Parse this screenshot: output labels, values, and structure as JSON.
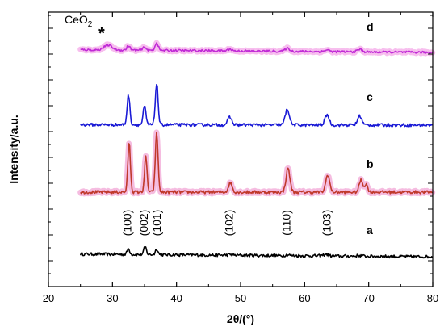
{
  "chart_data": {
    "type": "line",
    "xlabel": "2θ/(°)",
    "ylabel": "Intensity/a.u.",
    "xlim": [
      20,
      80
    ],
    "xticks": [
      20,
      30,
      40,
      50,
      60,
      70,
      80
    ],
    "grid": false,
    "legend": "none",
    "annotation": {
      "main": "CeO",
      "sub": "2",
      "marker": "*",
      "x": 29.5
    },
    "peak_labels": [
      {
        "text": "(100)",
        "x": 32.3
      },
      {
        "text": "(002)",
        "x": 34.9
      },
      {
        "text": "(101)",
        "x": 36.9
      },
      {
        "text": "(102)",
        "x": 48.2
      },
      {
        "text": "(110)",
        "x": 57.1
      },
      {
        "text": "(103)",
        "x": 63.4
      }
    ],
    "series": [
      {
        "name": "a",
        "color": "#000000",
        "halo": "",
        "baseline_start": 0.25,
        "baseline_end": 0.0,
        "noise": 0.035,
        "peaks": [
          {
            "x": 32.5,
            "h": 0.55,
            "w": 0.28
          },
          {
            "x": 35.1,
            "h": 0.75,
            "w": 0.28
          },
          {
            "x": 36.9,
            "h": 0.55,
            "w": 0.28
          },
          {
            "x": 48.3,
            "h": 0.06,
            "w": 0.5
          },
          {
            "x": 57.4,
            "h": 0.08,
            "w": 0.5
          },
          {
            "x": 63.3,
            "h": 0.15,
            "w": 0.5
          },
          {
            "x": 68.5,
            "h": 0.06,
            "w": 0.5
          }
        ]
      },
      {
        "name": "b",
        "color": "#c0392b",
        "halo": "#f2a6d6",
        "baseline_start": 0.0,
        "baseline_end": 0.0,
        "noise": 0.035,
        "peaks": [
          {
            "x": 32.6,
            "h": 4.5,
            "w": 0.28
          },
          {
            "x": 35.2,
            "h": 3.2,
            "w": 0.28
          },
          {
            "x": 36.9,
            "h": 5.4,
            "w": 0.3
          },
          {
            "x": 48.4,
            "h": 0.85,
            "w": 0.4
          },
          {
            "x": 57.4,
            "h": 2.2,
            "w": 0.42
          },
          {
            "x": 63.6,
            "h": 1.6,
            "w": 0.42
          },
          {
            "x": 68.8,
            "h": 1.1,
            "w": 0.4
          },
          {
            "x": 69.6,
            "h": 0.7,
            "w": 0.35
          }
        ]
      },
      {
        "name": "c",
        "color": "#1a1ad6",
        "halo": "",
        "baseline_start": 0.05,
        "baseline_end": 0.0,
        "noise": 0.04,
        "peaks": [
          {
            "x": 32.5,
            "h": 3.2,
            "w": 0.3
          },
          {
            "x": 35.0,
            "h": 2.0,
            "w": 0.3
          },
          {
            "x": 36.9,
            "h": 4.5,
            "w": 0.3
          },
          {
            "x": 48.3,
            "h": 0.8,
            "w": 0.45
          },
          {
            "x": 57.3,
            "h": 1.7,
            "w": 0.45
          },
          {
            "x": 63.5,
            "h": 1.1,
            "w": 0.45
          },
          {
            "x": 68.6,
            "h": 1.0,
            "w": 0.45
          }
        ]
      },
      {
        "name": "d",
        "color": "#c02ad6",
        "halo": "#f4a8e8",
        "baseline_start": 0.3,
        "baseline_end": 0.0,
        "noise": 0.03,
        "peaks": [
          {
            "x": 29.3,
            "h": 0.55,
            "w": 0.9
          },
          {
            "x": 32.5,
            "h": 0.5,
            "w": 0.35
          },
          {
            "x": 35.0,
            "h": 0.35,
            "w": 0.35
          },
          {
            "x": 36.9,
            "h": 0.85,
            "w": 0.35
          },
          {
            "x": 48.3,
            "h": 0.2,
            "w": 0.5
          },
          {
            "x": 57.3,
            "h": 0.35,
            "w": 0.5
          },
          {
            "x": 63.5,
            "h": 0.2,
            "w": 0.5
          },
          {
            "x": 68.6,
            "h": 0.3,
            "w": 0.5
          }
        ]
      }
    ]
  }
}
